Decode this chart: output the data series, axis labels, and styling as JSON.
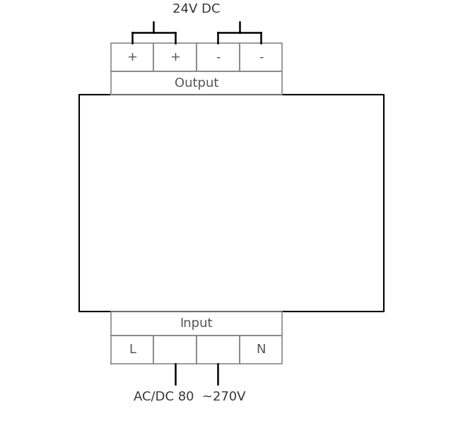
{
  "title": "24V DC",
  "bottom_label": "AC/DC 80  ~270V",
  "output_label": "Output",
  "input_label": "Input",
  "output_terminals": [
    "+",
    "+",
    "-",
    "-"
  ],
  "input_terminals": [
    "L",
    "",
    "",
    "N"
  ],
  "bg_color": "#ffffff",
  "line_color": "#000000",
  "box_line_color": "#000000",
  "terminal_line_color": "#888888",
  "text_color": "#555555",
  "main_box_color": "#aaaaaa",
  "fig_width": 6.55,
  "fig_height": 5.96,
  "dpi": 100
}
